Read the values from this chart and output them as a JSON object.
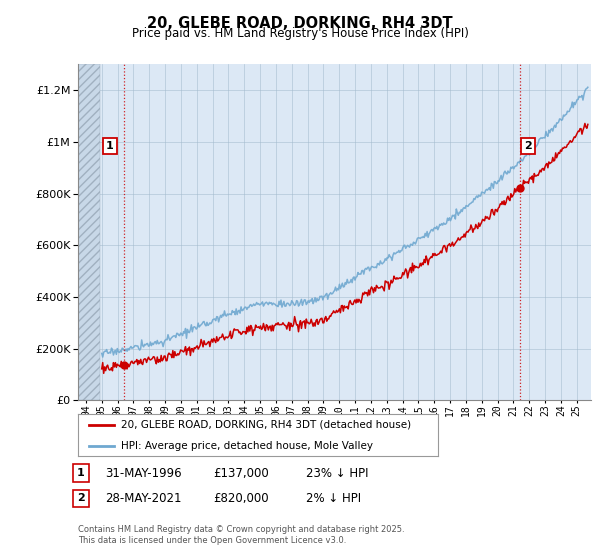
{
  "title": "20, GLEBE ROAD, DORKING, RH4 3DT",
  "subtitle": "Price paid vs. HM Land Registry's House Price Index (HPI)",
  "ylim": [
    0,
    1300000
  ],
  "yticks": [
    0,
    200000,
    400000,
    600000,
    800000,
    1000000,
    1200000
  ],
  "ytick_labels": [
    "£0",
    "£200K",
    "£400K",
    "£600K",
    "£800K",
    "£1M",
    "£1.2M"
  ],
  "hpi_color": "#6fa8d0",
  "price_color": "#cc0000",
  "sale1_year": 1996.41,
  "sale1_price": 137000,
  "sale2_year": 2021.41,
  "sale2_price": 820000,
  "legend_line1": "20, GLEBE ROAD, DORKING, RH4 3DT (detached house)",
  "legend_line2": "HPI: Average price, detached house, Mole Valley",
  "ann1_date": "31-MAY-1996",
  "ann1_price": "£137,000",
  "ann1_pct": "23% ↓ HPI",
  "ann2_date": "28-MAY-2021",
  "ann2_price": "£820,000",
  "ann2_pct": "2% ↓ HPI",
  "footer": "Contains HM Land Registry data © Crown copyright and database right 2025.\nThis data is licensed under the Open Government Licence v3.0.",
  "background_color": "#ffffff",
  "plot_bg_color": "#dce8f5"
}
